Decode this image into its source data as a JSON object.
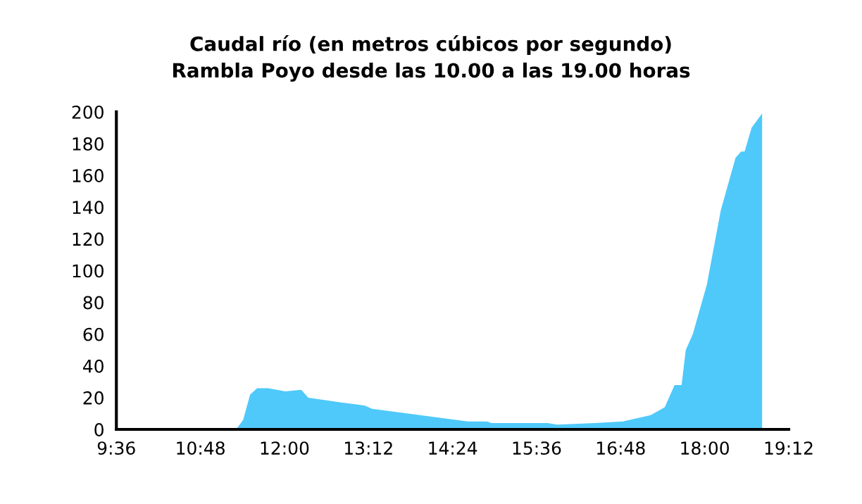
{
  "chart_data": {
    "type": "area",
    "title": "Caudal río (en metros cúbicos por segundo)\nRambla Poyo desde las 10.00 a las 19.00 horas",
    "x": [
      9.6,
      11.31,
      11.41,
      11.51,
      11.61,
      11.77,
      12.01,
      12.24,
      12.34,
      12.81,
      13.15,
      13.25,
      14.62,
      14.89,
      14.96,
      15.76,
      15.89,
      16.43,
      16.83,
      17.23,
      17.43,
      17.57,
      17.67,
      17.73,
      17.83,
      18.03,
      18.23,
      18.44,
      18.52,
      18.57,
      18.67,
      18.82
    ],
    "series": [
      {
        "color": "#4fc9fa",
        "values": [
          0,
          0,
          6,
          22,
          26,
          26,
          24,
          25,
          20,
          17,
          15,
          13,
          5,
          5,
          4,
          4,
          3,
          4,
          5,
          9,
          14,
          28,
          28,
          50,
          60,
          91,
          138,
          171,
          175,
          175,
          190,
          199
        ]
      }
    ],
    "xlim": [
      9.6,
      19.2
    ],
    "xticks": [
      {
        "value": 9.6,
        "label": "9:36"
      },
      {
        "value": 10.8,
        "label": "10:48"
      },
      {
        "value": 12.0,
        "label": "12:00"
      },
      {
        "value": 13.2,
        "label": "13:12"
      },
      {
        "value": 14.4,
        "label": "14:24"
      },
      {
        "value": 15.6,
        "label": "15:36"
      },
      {
        "value": 16.8,
        "label": "16:48"
      },
      {
        "value": 18.0,
        "label": "18:00"
      },
      {
        "value": 19.2,
        "label": "19:12"
      }
    ],
    "ylim": [
      0,
      200
    ],
    "yticks": [
      0,
      20,
      40,
      60,
      80,
      100,
      120,
      140,
      160,
      180,
      200
    ],
    "grid": false
  }
}
